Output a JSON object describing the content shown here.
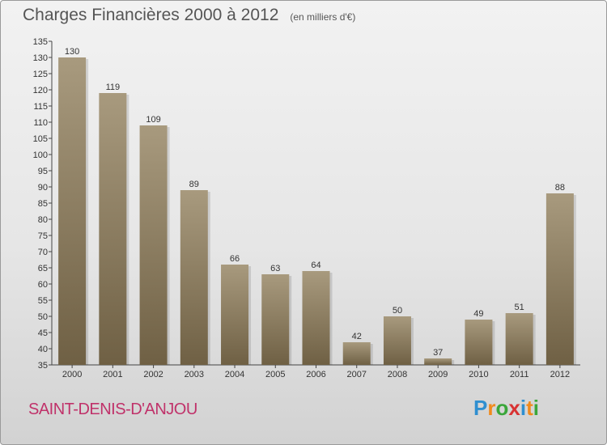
{
  "title": "Charges Financières 2000 à 2012",
  "unit_note": "(en milliers d'€)",
  "place": "SAINT-DENIS-D'ANJOU",
  "logo": {
    "letters": [
      "P",
      "r",
      "o",
      "x",
      "i",
      "t",
      "i"
    ],
    "colors": [
      "#2f8fd0",
      "#f08a1c",
      "#3aa63a",
      "#d83232",
      "#2f8fd0",
      "#f08a1c",
      "#3aa63a"
    ]
  },
  "colors": {
    "bar_light": "#a89a7e",
    "bar_dark": "#6f6044",
    "place": "#c0326a"
  },
  "chart_data": {
    "type": "bar",
    "categories": [
      "2000",
      "2001",
      "2002",
      "2003",
      "2004",
      "2005",
      "2006",
      "2007",
      "2008",
      "2009",
      "2010",
      "2011",
      "2012"
    ],
    "values": [
      130,
      119,
      109,
      89,
      66,
      63,
      64,
      42,
      50,
      37,
      49,
      51,
      88
    ],
    "ylim": [
      35,
      135
    ],
    "yticks": [
      35,
      40,
      45,
      50,
      55,
      60,
      65,
      70,
      75,
      80,
      85,
      90,
      95,
      100,
      105,
      110,
      115,
      120,
      125,
      130,
      135
    ],
    "grid": false
  }
}
